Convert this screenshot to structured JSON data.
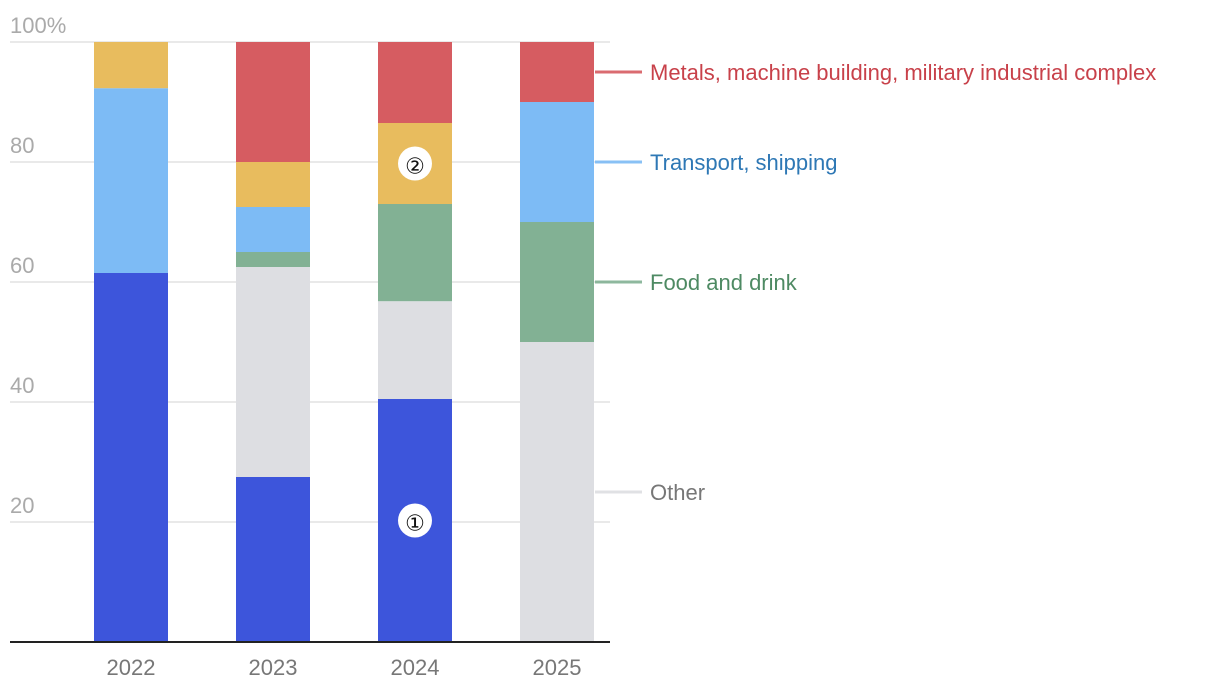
{
  "chart_data": {
    "type": "stacked_bar",
    "categories": [
      "2022",
      "2023",
      "2024",
      "2025"
    ],
    "series": [
      {
        "color": "#3d55db",
        "values": [
          61.5,
          27.5,
          40.5,
          0
        ],
        "labels": [
          null,
          null,
          "①",
          null
        ]
      },
      {
        "name": "Other",
        "color": "#dddee2",
        "label_color": "#777777",
        "values": [
          0,
          35,
          16.3,
          50
        ]
      },
      {
        "name": "Food and drink",
        "color": "#82b194",
        "label_color": "#4e8a63",
        "values": [
          0,
          2.5,
          16.2,
          20
        ]
      },
      {
        "name": "Transport, shipping",
        "color": "#7dbbf5",
        "label_color": "#2e78b5",
        "values": [
          30.8,
          7.5,
          0,
          20
        ]
      },
      {
        "color": "#e8bc5e",
        "values": [
          7.7,
          7.5,
          13.5,
          0
        ],
        "labels": [
          null,
          null,
          "②",
          null
        ]
      },
      {
        "name": "Metals, machine building, military industrial complex",
        "color": "#d65c61",
        "label_color": "#c8414a",
        "values": [
          0,
          20,
          13.5,
          10
        ]
      }
    ],
    "ylim": [
      0,
      100
    ],
    "yticks": [
      20,
      40,
      60,
      80,
      {
        "value": 100,
        "label": "100%"
      }
    ],
    "grid": true,
    "legend": "right"
  }
}
